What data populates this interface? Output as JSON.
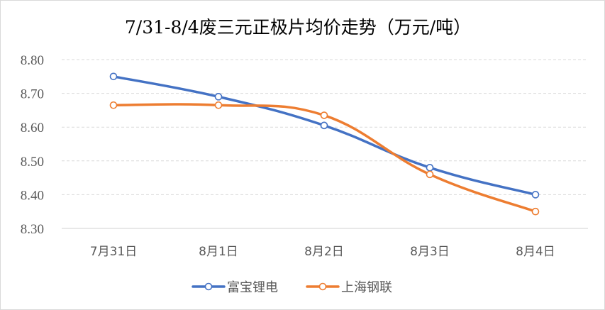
{
  "chart_data": {
    "type": "line",
    "title": "7/31-8/4废三元正极片均价走势（万元/吨）",
    "categories": [
      "7月31日",
      "8月1日",
      "8月2日",
      "8月3日",
      "8月4日"
    ],
    "yticks": [
      "8.30",
      "8.40",
      "8.50",
      "8.60",
      "8.70",
      "8.80"
    ],
    "ylim": [
      8.3,
      8.8
    ],
    "grid": true,
    "smooth": true,
    "legend_position": "bottom",
    "series": [
      {
        "name": "富宝锂电",
        "color": "#4472C4",
        "values": [
          8.75,
          8.69,
          8.605,
          8.48,
          8.4
        ]
      },
      {
        "name": "上海钢联",
        "color": "#ED7D31",
        "values": [
          8.665,
          8.665,
          8.635,
          8.46,
          8.35
        ]
      }
    ]
  }
}
